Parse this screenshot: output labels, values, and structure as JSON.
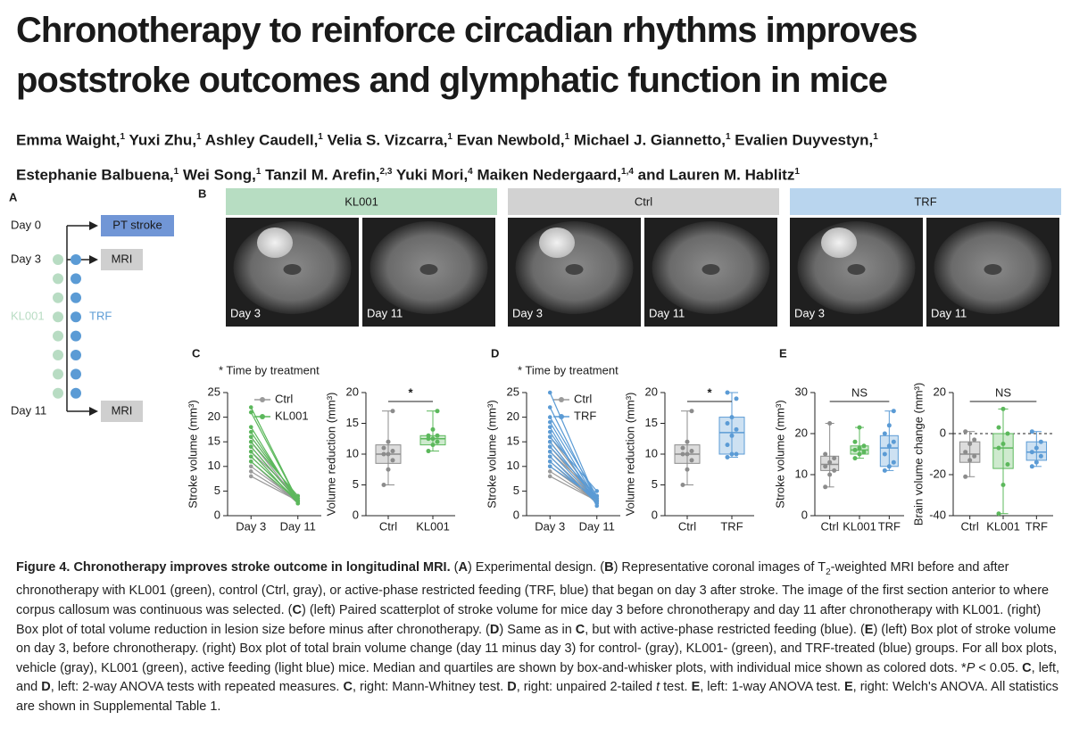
{
  "title": "Chronotherapy to reinforce circadian rhythms improves poststroke outcomes and glymphatic function in mice",
  "authors": [
    [
      {
        "text": "Emma Waight,"
      },
      {
        "text": "1",
        "style": "sup"
      },
      {
        "text": " Yuxi Zhu,"
      },
      {
        "text": "1",
        "style": "sup"
      },
      {
        "text": " Ashley Caudell,"
      },
      {
        "text": "1",
        "style": "sup"
      },
      {
        "text": " Velia S. Vizcarra,"
      },
      {
        "text": "1",
        "style": "sup"
      },
      {
        "text": " Evan Newbold,"
      },
      {
        "text": "1",
        "style": "sup"
      },
      {
        "text": " Michael J. Giannetto,"
      },
      {
        "text": "1",
        "style": "sup"
      },
      {
        "text": " Evalien Duyvestyn,"
      },
      {
        "text": "1",
        "style": "sup"
      }
    ],
    [
      {
        "text": "Estephanie Balbuena,"
      },
      {
        "text": "1",
        "style": "sup"
      },
      {
        "text": " Wei Song,"
      },
      {
        "text": "1",
        "style": "sup"
      },
      {
        "text": " Tanzil M. Arefin,"
      },
      {
        "text": "2,3",
        "style": "sup"
      },
      {
        "text": " Yuki Mori,"
      },
      {
        "text": "4",
        "style": "sup"
      },
      {
        "text": " Maiken Nedergaard,"
      },
      {
        "text": "1,4",
        "style": "sup"
      },
      {
        "text": " and Lauren M. Hablitz"
      },
      {
        "text": "1",
        "style": "sup"
      }
    ]
  ],
  "panel_a": {
    "label": "A",
    "steps": [
      {
        "day": "Day 0",
        "event": "PT stroke",
        "color": "#7196d6"
      },
      {
        "day": "Day 3",
        "event": "MRI",
        "color": "#cfcfcf"
      },
      {
        "day": "Day 11",
        "event": "MRI",
        "color": "#cfcfcf"
      }
    ],
    "groups": [
      {
        "name": "KL001",
        "color": "#b8dcc3"
      },
      {
        "name": "TRF",
        "color": "#5b9bd5"
      }
    ]
  },
  "panel_b": {
    "label": "B",
    "groups": [
      {
        "name": "KL001",
        "color": "#b7ddc2",
        "images": [
          "Day 3",
          "Day 11"
        ]
      },
      {
        "name": "Ctrl",
        "color": "#d2d2d2",
        "images": [
          "Day 3",
          "Day 11"
        ]
      },
      {
        "name": "TRF",
        "color": "#b9d5ee",
        "images": [
          "Day 3",
          "Day 11"
        ]
      }
    ]
  },
  "chart_data": [
    {
      "type": "line",
      "panel": "C",
      "annotation": "* Time by treatment",
      "ylabel": "Stroke volume (mm³)",
      "categories": [
        "Day 3",
        "Day 11"
      ],
      "ylim": [
        0,
        25
      ],
      "yticks": [
        0,
        5,
        10,
        15,
        20,
        25
      ],
      "series": [
        {
          "name": "Ctrl",
          "color": "#9a9a9a",
          "values": [
            [
              15,
              3
            ],
            [
              14,
              3
            ],
            [
              13,
              4
            ],
            [
              12,
              3
            ],
            [
              11,
              2.5
            ],
            [
              10,
              3
            ],
            [
              9,
              3
            ],
            [
              8,
              3
            ],
            [
              16,
              3.5
            ]
          ]
        },
        {
          "name": "KL001",
          "color": "#5cb85c",
          "values": [
            [
              22,
              3
            ],
            [
              21,
              3
            ],
            [
              18,
              2.5
            ],
            [
              17,
              3
            ],
            [
              16,
              3.5
            ],
            [
              15,
              4
            ],
            [
              14,
              3
            ],
            [
              13,
              2.5
            ],
            [
              12,
              3
            ],
            [
              11,
              3
            ]
          ]
        }
      ]
    },
    {
      "type": "box",
      "ylabel": "Volume reduction (mm³)",
      "categories": [
        "Ctrl",
        "KL001"
      ],
      "ylim": [
        0,
        20
      ],
      "yticks": [
        0,
        5,
        10,
        15,
        20
      ],
      "significance": "*",
      "boxes": [
        {
          "color": "#8c8c8c",
          "min": 5,
          "q1": 8.5,
          "median": 10,
          "q3": 11.5,
          "max": 17,
          "points": [
            5,
            7.5,
            9,
            10,
            10,
            10.5,
            11,
            12,
            17
          ]
        },
        {
          "color": "#5cb85c",
          "min": 10.5,
          "q1": 11.5,
          "median": 12.5,
          "q3": 13,
          "max": 17,
          "points": [
            10.5,
            11.5,
            12,
            12.5,
            12.5,
            13,
            13,
            14,
            17
          ]
        }
      ]
    },
    {
      "type": "line",
      "panel": "D",
      "annotation": "* Time by treatment",
      "ylabel": "Stroke volume (mm³)",
      "categories": [
        "Day 3",
        "Day 11"
      ],
      "ylim": [
        0,
        25
      ],
      "yticks": [
        0,
        5,
        10,
        15,
        20,
        25
      ],
      "series": [
        {
          "name": "Ctrl",
          "color": "#9a9a9a",
          "values": [
            [
              15,
              3
            ],
            [
              14,
              3
            ],
            [
              13,
              4
            ],
            [
              12,
              3
            ],
            [
              11,
              2.5
            ],
            [
              10,
              3
            ],
            [
              9,
              3
            ],
            [
              8,
              3
            ],
            [
              16,
              3.5
            ]
          ]
        },
        {
          "name": "TRF",
          "color": "#5b9bd5",
          "values": [
            [
              25,
              3
            ],
            [
              22,
              3
            ],
            [
              20,
              4
            ],
            [
              19,
              3
            ],
            [
              18,
              2
            ],
            [
              17,
              3
            ],
            [
              16,
              5
            ],
            [
              15,
              3
            ],
            [
              14,
              4
            ],
            [
              13,
              3
            ],
            [
              12,
              2.5
            ],
            [
              11,
              3
            ],
            [
              10,
              3.5
            ]
          ]
        }
      ]
    },
    {
      "type": "box",
      "ylabel": "Volume reduction (mm³)",
      "categories": [
        "Ctrl",
        "TRF"
      ],
      "ylim": [
        0,
        20
      ],
      "yticks": [
        0,
        5,
        10,
        15,
        20
      ],
      "significance": "*",
      "boxes": [
        {
          "color": "#8c8c8c",
          "min": 5,
          "q1": 8.5,
          "median": 10,
          "q3": 11.5,
          "max": 17,
          "points": [
            5,
            7.5,
            9,
            10,
            10,
            10.5,
            11,
            12,
            17
          ]
        },
        {
          "color": "#5b9bd5",
          "min": 9.5,
          "q1": 10,
          "median": 13.5,
          "q3": 16,
          "max": 20,
          "points": [
            9.5,
            10,
            10,
            11.5,
            13,
            14,
            15,
            16,
            19,
            20
          ]
        }
      ]
    },
    {
      "type": "box",
      "panel": "E",
      "ylabel": "Stroke volume (mm³)",
      "categories": [
        "Ctrl",
        "KL001",
        "TRF"
      ],
      "ylim": [
        0,
        30
      ],
      "yticks": [
        0,
        10,
        20,
        30
      ],
      "significance": "NS",
      "boxes": [
        {
          "color": "#8c8c8c",
          "min": 7,
          "q1": 11,
          "median": 12.5,
          "q3": 14.5,
          "max": 22.5,
          "points": [
            7,
            10,
            11,
            12,
            13,
            14,
            15,
            22.5
          ]
        },
        {
          "color": "#5cb85c",
          "min": 14,
          "q1": 15,
          "median": 16,
          "q3": 17,
          "max": 21.5,
          "points": [
            14,
            15,
            15.5,
            16,
            16.5,
            17,
            18,
            21.5
          ]
        },
        {
          "color": "#5b9bd5",
          "min": 11,
          "q1": 12,
          "median": 16.5,
          "q3": 19.5,
          "max": 25.5,
          "points": [
            11,
            12,
            13,
            15,
            17,
            18,
            20,
            22,
            25.5
          ]
        }
      ]
    },
    {
      "type": "box",
      "ylabel": "Brain volume change (mm³)",
      "categories": [
        "Ctrl",
        "KL001",
        "TRF"
      ],
      "ylim": [
        -40,
        20
      ],
      "yticks": [
        -40,
        -20,
        0,
        20
      ],
      "significance": "NS",
      "zero_line": true,
      "boxes": [
        {
          "color": "#8c8c8c",
          "min": -21,
          "q1": -14,
          "median": -10,
          "q3": -4,
          "max": 1,
          "points": [
            -21,
            -13,
            -11,
            -9,
            -5,
            -3,
            1
          ]
        },
        {
          "color": "#5cb85c",
          "min": -39,
          "q1": -17,
          "median": -7,
          "q3": 0,
          "max": 12,
          "points": [
            -39,
            -25,
            -15,
            -7,
            -5,
            0,
            3,
            12
          ]
        },
        {
          "color": "#5b9bd5",
          "min": -16,
          "q1": -13,
          "median": -9,
          "q3": -4,
          "max": 1,
          "points": [
            -16,
            -14,
            -11,
            -9,
            -7,
            -4,
            1
          ]
        }
      ]
    }
  ],
  "caption": [
    {
      "text": "Figure 4. Chronotherapy improves stroke outcome in longitudinal MRI.",
      "style": "bold"
    },
    {
      "text": " ("
    },
    {
      "text": "A",
      "style": "bold"
    },
    {
      "text": ") Experimental design. ("
    },
    {
      "text": "B",
      "style": "bold"
    },
    {
      "text": ") Representative coronal images of T"
    },
    {
      "text": "2",
      "style": "sub"
    },
    {
      "text": "-weighted MRI before and after chronotherapy with KL001 (green), control (Ctrl, gray), or active-phase restricted feeding (TRF, blue) that began on day 3 after stroke. The image of the first section anterior to where corpus callosum was continuous was selected. ("
    },
    {
      "text": "C",
      "style": "bold"
    },
    {
      "text": ") (left) Paired scatterplot of stroke volume for mice day 3 before chronotherapy and day 11 after chronotherapy with KL001. (right) Box plot of total volume reduction in lesion size before minus after chronotherapy. ("
    },
    {
      "text": "D",
      "style": "bold"
    },
    {
      "text": ") Same as in "
    },
    {
      "text": "C",
      "style": "bold"
    },
    {
      "text": ", but with active-phase restricted feeding (blue). ("
    },
    {
      "text": "E",
      "style": "bold"
    },
    {
      "text": ") (left) Box plot of stroke volume on day 3, before chronotherapy. (right) Box plot of total brain volume change (day 11 minus day 3) for control- (gray), KL001- (green), and TRF-treated (blue) groups. For all box plots, vehicle (gray), KL001 (green), active feeding (light blue) mice. Median and quartiles are shown by box-and-whisker plots, with individual mice shown as colored dots. *"
    },
    {
      "text": "P",
      "style": "italic"
    },
    {
      "text": " < 0.05. "
    },
    {
      "text": "C",
      "style": "bold"
    },
    {
      "text": ", left, and "
    },
    {
      "text": "D",
      "style": "bold"
    },
    {
      "text": ", left: 2-way ANOVA tests with repeated measures. "
    },
    {
      "text": "C",
      "style": "bold"
    },
    {
      "text": ", right: Mann-Whitney test. "
    },
    {
      "text": "D",
      "style": "bold"
    },
    {
      "text": ", right: unpaired 2-tailed "
    },
    {
      "text": "t",
      "style": "italic"
    },
    {
      "text": " test. "
    },
    {
      "text": "E",
      "style": "bold"
    },
    {
      "text": ", left: 1-way ANOVA test. "
    },
    {
      "text": "E",
      "style": "bold"
    },
    {
      "text": ", right: Welch's ANOVA. All statistics are shown in Supplemental Table 1."
    }
  ]
}
